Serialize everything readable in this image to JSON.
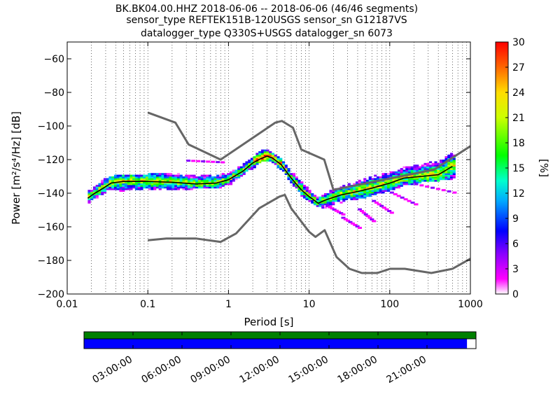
{
  "chart_data": {
    "type": "heatmap",
    "title_lines": [
      "BK.BK04.00.HHZ   2018-06-06 -- 2018-06-06  (46/46 segments)",
      "sensor_type REFTEK151B-120USGS sensor_sn G12187VS",
      "datalogger_type Q330S+USGS datalogger_sn 6073"
    ],
    "xlabel": "Period [s]",
    "ylabel": "Power [m²/s⁴/Hz] [dB]",
    "x_scale": "log",
    "xlim": [
      0.01,
      1000
    ],
    "ylim": [
      -200,
      -50
    ],
    "x_ticks": [
      {
        "value": 0.01,
        "label": "0.01"
      },
      {
        "value": 0.1,
        "label": "0.1"
      },
      {
        "value": 1,
        "label": "1"
      },
      {
        "value": 10,
        "label": "10"
      },
      {
        "value": 100,
        "label": "100"
      },
      {
        "value": 1000,
        "label": "1000"
      }
    ],
    "y_ticks": [
      {
        "value": -60,
        "label": "−60"
      },
      {
        "value": -80,
        "label": "−80"
      },
      {
        "value": -100,
        "label": "−100"
      },
      {
        "value": -120,
        "label": "−120"
      },
      {
        "value": -140,
        "label": "−140"
      },
      {
        "value": -160,
        "label": "−160"
      },
      {
        "value": -180,
        "label": "−180"
      },
      {
        "value": -200,
        "label": "−200"
      }
    ],
    "grid": "dotted vertical",
    "colorbar": {
      "label": "[%]",
      "range": [
        0,
        30
      ],
      "ticks": [
        "0",
        "3",
        "6",
        "9",
        "12",
        "15",
        "18",
        "21",
        "24",
        "27",
        "30"
      ]
    },
    "noise_models": [
      {
        "name": "high",
        "points": [
          [
            0.1,
            -92
          ],
          [
            0.22,
            -98
          ],
          [
            0.32,
            -111
          ],
          [
            0.8,
            -120
          ],
          [
            3.8,
            -98
          ],
          [
            4.6,
            -97
          ],
          [
            6.3,
            -101
          ],
          [
            8,
            -114
          ],
          [
            15.4,
            -120
          ],
          [
            20,
            -138
          ],
          [
            354,
            -126
          ],
          [
            1000,
            -112
          ]
        ]
      },
      {
        "name": "low",
        "points": [
          [
            0.1,
            -168
          ],
          [
            0.17,
            -167
          ],
          [
            0.4,
            -167
          ],
          [
            0.8,
            -169
          ],
          [
            1.24,
            -164
          ],
          [
            2.4,
            -149
          ],
          [
            4.3,
            -142
          ],
          [
            5,
            -141
          ],
          [
            6,
            -149
          ],
          [
            10,
            -163
          ],
          [
            12,
            -166
          ],
          [
            15.6,
            -162
          ],
          [
            21.9,
            -178
          ],
          [
            31.6,
            -185
          ],
          [
            45,
            -187.5
          ],
          [
            70,
            -187.5
          ],
          [
            101,
            -185
          ],
          [
            154,
            -185
          ],
          [
            328,
            -187.5
          ],
          [
            600,
            -185
          ],
          [
            1000,
            -179
          ]
        ]
      }
    ],
    "mean_curve": [
      [
        0.018,
        -143
      ],
      [
        0.022,
        -140
      ],
      [
        0.028,
        -137
      ],
      [
        0.035,
        -134
      ],
      [
        0.05,
        -133
      ],
      [
        0.1,
        -133
      ],
      [
        0.2,
        -133.5
      ],
      [
        0.4,
        -134.5
      ],
      [
        0.7,
        -134
      ],
      [
        1,
        -132
      ],
      [
        1.5,
        -127
      ],
      [
        2,
        -122
      ],
      [
        2.5,
        -119.5
      ],
      [
        3,
        -118
      ],
      [
        3.5,
        -119
      ],
      [
        4.5,
        -123
      ],
      [
        6,
        -131
      ],
      [
        8,
        -138
      ],
      [
        10,
        -142
      ],
      [
        13,
        -146
      ],
      [
        16,
        -144
      ],
      [
        25,
        -141
      ],
      [
        40,
        -139
      ],
      [
        60,
        -137
      ],
      [
        100,
        -134
      ],
      [
        150,
        -131
      ],
      [
        250,
        -130
      ],
      [
        400,
        -129
      ],
      [
        600,
        -124
      ]
    ],
    "ppsd_upper": [
      [
        0.018,
        -140
      ],
      [
        0.03,
        -132
      ],
      [
        0.05,
        -130
      ],
      [
        0.1,
        -130
      ],
      [
        0.2,
        -129
      ],
      [
        0.4,
        -131
      ],
      [
        0.7,
        -130
      ],
      [
        1,
        -129
      ],
      [
        1.5,
        -124
      ],
      [
        2,
        -120
      ],
      [
        2.5,
        -116
      ],
      [
        3,
        -115
      ],
      [
        3.5,
        -117
      ],
      [
        4.5,
        -121
      ],
      [
        6,
        -128
      ],
      [
        8,
        -134
      ],
      [
        10,
        -139
      ],
      [
        13,
        -144
      ],
      [
        16,
        -141
      ],
      [
        25,
        -137
      ],
      [
        40,
        -134
      ],
      [
        60,
        -131
      ],
      [
        100,
        -129
      ],
      [
        150,
        -126
      ],
      [
        250,
        -124
      ],
      [
        400,
        -122
      ],
      [
        600,
        -117
      ]
    ],
    "ppsd_lower": [
      [
        0.018,
        -146
      ],
      [
        0.03,
        -139
      ],
      [
        0.05,
        -138
      ],
      [
        0.1,
        -138
      ],
      [
        0.2,
        -138
      ],
      [
        0.4,
        -137
      ],
      [
        0.7,
        -137
      ],
      [
        1,
        -135
      ],
      [
        1.5,
        -130
      ],
      [
        2,
        -125
      ],
      [
        2.5,
        -121
      ],
      [
        3,
        -120
      ],
      [
        3.5,
        -121
      ],
      [
        4.5,
        -126
      ],
      [
        6,
        -134
      ],
      [
        8,
        -141
      ],
      [
        10,
        -145
      ],
      [
        13,
        -149
      ],
      [
        16,
        -148
      ],
      [
        25,
        -145
      ],
      [
        40,
        -143
      ],
      [
        60,
        -141
      ],
      [
        100,
        -138
      ],
      [
        150,
        -135
      ],
      [
        250,
        -133
      ],
      [
        400,
        -132
      ],
      [
        600,
        -131
      ]
    ],
    "outliers": [
      {
        "x": [
          0.3,
          0.8
        ],
        "y": [
          -121,
          -122
        ]
      },
      {
        "x": [
          16,
          25
        ],
        "y": [
          -148,
          -153
        ]
      },
      {
        "x": [
          25,
          40
        ],
        "y": [
          -155,
          -161
        ]
      },
      {
        "x": [
          40,
          60
        ],
        "y": [
          -150,
          -157
        ]
      },
      {
        "x": [
          60,
          100
        ],
        "y": [
          -145,
          -152
        ]
      },
      {
        "x": [
          100,
          200
        ],
        "y": [
          -140,
          -147
        ]
      },
      {
        "x": [
          200,
          600
        ],
        "y": [
          -135,
          -140
        ]
      }
    ],
    "time_axis": {
      "labels": [
        "03:00:00",
        "06:00:00",
        "09:00:00",
        "12:00:00",
        "15:00:00",
        "18:00:00",
        "21:00:00"
      ],
      "coverage_fraction": 0.977,
      "colors": {
        "data_bar": "#0000ff",
        "top_bar": "#008000",
        "empty": "#ffffff"
      }
    }
  },
  "colors": {
    "noise_model": "#666666",
    "mean_curve": "#000000"
  }
}
